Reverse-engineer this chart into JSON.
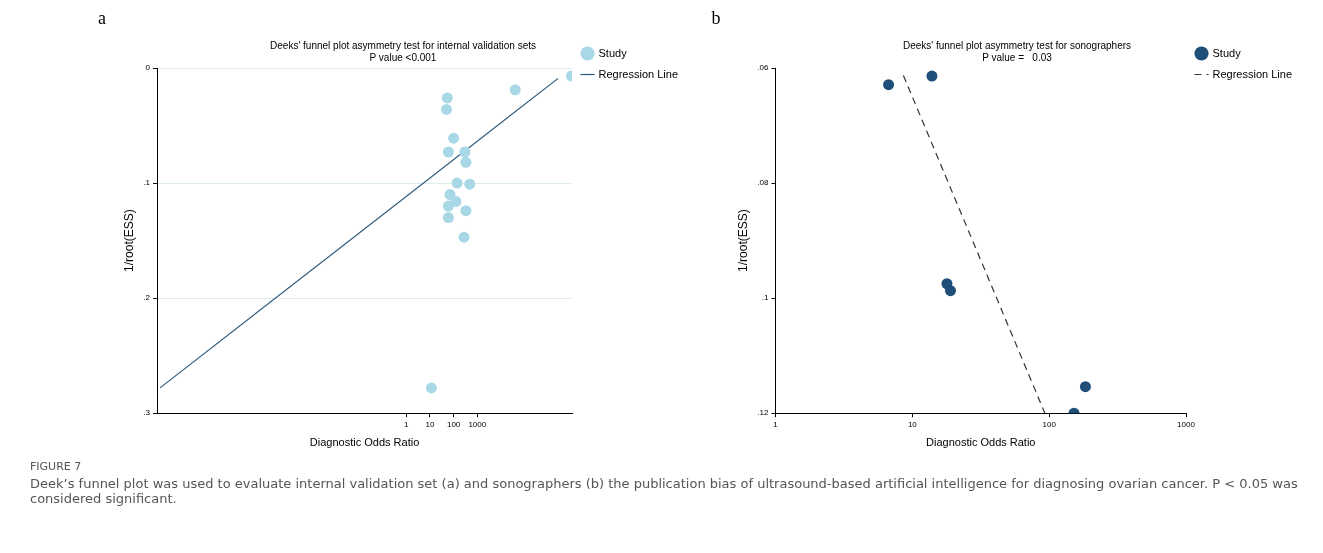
{
  "chart_data": [
    {
      "type": "scatter",
      "title": "Deeks' funnel plot asymmetry test for internal validation sets",
      "subtitle": "P value <0.001",
      "xlabel": "Diagnostic Odds Ratio",
      "ylabel": "1/root(ESS)",
      "log": "x",
      "xlim": [
        3e-11,
        10000000.0
      ],
      "xticks": [
        1,
        10,
        100,
        1000
      ],
      "ylim": [
        0.3,
        0
      ],
      "yticks": [
        0,
        {
          "value": 0.1,
          "label": ".1"
        },
        {
          "value": 0.2,
          "label": ".2"
        },
        {
          "value": 0.3,
          "label": ".3"
        }
      ],
      "grid": "y",
      "legend": "top right",
      "marker": "circle",
      "annotations": [
        "a"
      ],
      "series": [
        {
          "name": "Study",
          "type": "scatter",
          "color": "#a8d8e6",
          "x": [
            9500000,
            40000,
            54,
            50,
            100,
            60,
            300,
            330,
            140,
            480,
            70,
            125,
            60,
            330,
            60,
            275,
            11.5
          ],
          "values": [
            0.007,
            0.019,
            0.026,
            0.036,
            0.061,
            0.073,
            0.073,
            0.082,
            0.1,
            0.101,
            0.11,
            0.116,
            0.12,
            0.124,
            0.13,
            0.147,
            0.278
          ]
        },
        {
          "name": "Regression Line",
          "type": "line",
          "color": "#2e5a7a",
          "marker": "none",
          "line_style": "solid",
          "x": [
            4e-11,
            2600000
          ],
          "values": [
            0.278,
            0.009
          ]
        }
      ]
    },
    {
      "type": "scatter",
      "title": "Deeks' funnel plot asymmetry test for sonographers",
      "subtitle": "P value =   0.03",
      "xlabel": "Diagnostic Odds Ratio",
      "ylabel": "1/root(ESS)",
      "log": "x",
      "xlim": [
        1,
        1000
      ],
      "xticks": [
        1,
        10,
        100,
        1000
      ],
      "ylim": [
        0.12,
        0.06
      ],
      "yticks": [
        {
          "value": 0.06,
          "label": ".06"
        },
        {
          "value": 0.08,
          "label": ".08"
        },
        {
          "value": 0.1,
          "label": ".1"
        },
        {
          "value": 0.12,
          "label": ".12"
        }
      ],
      "legend": "top right",
      "marker": "circle",
      "annotations": [
        "b",
        "FIGURE 7",
        "Deek’s funnel plot was used to evaluate internal validation set (a) and sonographers (b) the publication bias of ultrasound-based artificial intelligence for diagnosing ovarian cancer. P < 0.05 was considered significant."
      ],
      "series": [
        {
          "name": "Study",
          "type": "scatter",
          "color": "#1f4e79",
          "x": [
            6.7,
            13.9,
            17.9,
            19,
            184,
            152
          ],
          "values": [
            0.0629,
            0.0614,
            0.0975,
            0.0987,
            0.1154,
            0.12
          ]
        },
        {
          "name": "Regression Line",
          "type": "line",
          "color": "#333333",
          "marker": "none",
          "line_style": "dashed",
          "x": [
            8.6,
            93
          ],
          "values": [
            0.0613,
            0.12
          ]
        }
      ]
    }
  ]
}
